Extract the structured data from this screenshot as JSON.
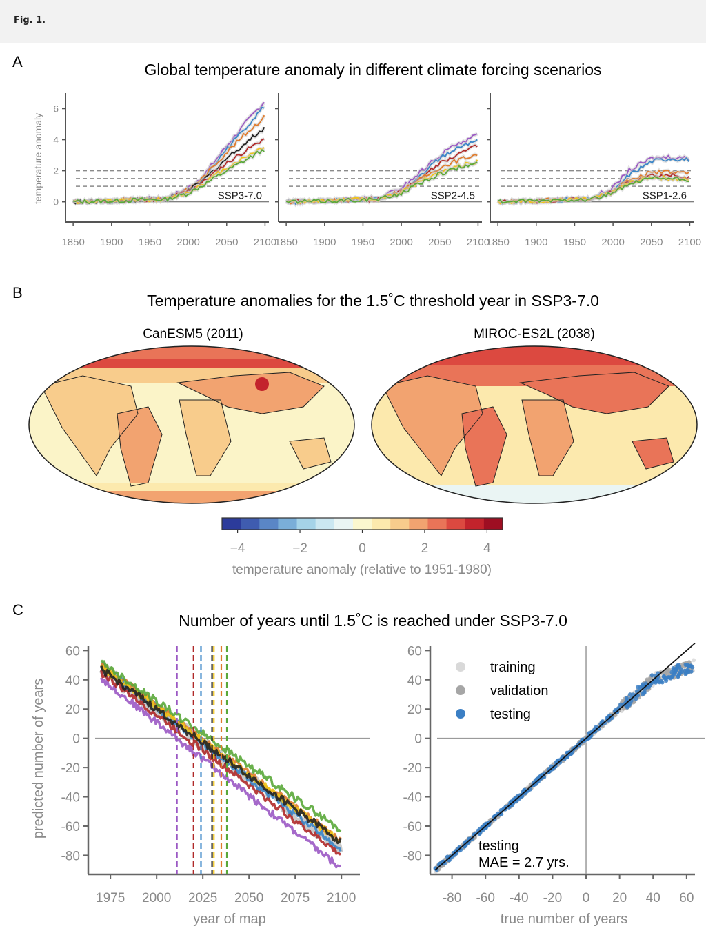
{
  "figure_label": "Fig. 1.",
  "panels": {
    "a": {
      "letter": "A",
      "title": "Global temperature anomaly in different climate forcing scenarios"
    },
    "b": {
      "letter": "B",
      "title": "Temperature anomalies for the 1.5˚C threshold year in SSP3-7.0",
      "map_titles": [
        "CanESM5 (2011)",
        "MIROC-ES2L (2038)"
      ],
      "colorbar": {
        "label": "temperature anomaly (relative to 1951-1980)",
        "range": [
          -4.5,
          4.5
        ],
        "ticks": [
          -4,
          -2,
          0,
          2,
          4
        ],
        "tick_labels": [
          "−4",
          "−2",
          "0",
          "2",
          "4"
        ],
        "colors": [
          "#2c3b9b",
          "#3f5cb0",
          "#5a86c6",
          "#7aaed8",
          "#a5d3e8",
          "#cbe7f1",
          "#eaf5f4",
          "#fbf7cf",
          "#fce9ad",
          "#f8cc8c",
          "#f2a370",
          "#e97458",
          "#dc4940",
          "#c3232c",
          "#9e0e22"
        ]
      }
    },
    "c": {
      "letter": "C",
      "title": "Number of years until 1.5˚C is reached under SSP3-7.0",
      "legend": [
        "training",
        "validation",
        "testing"
      ],
      "annotation": [
        "testing",
        "MAE = 2.7 yrs."
      ]
    }
  },
  "chart_data": [
    {
      "type": "line",
      "panel": "A1",
      "label": "SSP3-7.0",
      "ylabel": "temperature anomaly",
      "xlim": [
        1840,
        2105
      ],
      "ylim": [
        -1.3,
        7
      ],
      "x_ticks": [
        1850,
        1900,
        1950,
        2000,
        2050,
        2100
      ],
      "y_ticks": [
        0,
        2,
        4,
        6
      ],
      "hlines": [
        1,
        1.5,
        2
      ],
      "x": [
        1850,
        1900,
        1950,
        1970,
        2000,
        2020,
        2050,
        2075,
        2100
      ],
      "series": [
        {
          "color": "#9b59c4",
          "values": [
            0,
            0.05,
            0.2,
            0.2,
            0.9,
            1.7,
            3.6,
            5.1,
            6.5
          ]
        },
        {
          "color": "#3b86c8",
          "values": [
            0,
            0.05,
            0.15,
            0.15,
            0.6,
            1.5,
            3.4,
            4.8,
            6.2
          ]
        },
        {
          "color": "#e07b2b",
          "values": [
            0,
            0.05,
            0.2,
            0.15,
            0.8,
            1.6,
            3.2,
            4.4,
            5.5
          ]
        },
        {
          "color": "#222222",
          "values": [
            0,
            0.05,
            0.15,
            0.15,
            0.7,
            1.4,
            2.8,
            3.8,
            4.8
          ]
        },
        {
          "color": "#b02a2a",
          "values": [
            0,
            0.05,
            0.15,
            0.15,
            0.7,
            1.3,
            2.5,
            3.3,
            4.1
          ]
        },
        {
          "color": "#f0c419",
          "values": [
            0,
            0.05,
            0.15,
            0.15,
            0.6,
            1.2,
            2.2,
            2.9,
            3.6
          ]
        },
        {
          "color": "#5aa83a",
          "values": [
            0,
            0.05,
            0.15,
            0.15,
            0.55,
            1.1,
            2.0,
            2.7,
            3.4
          ]
        }
      ]
    },
    {
      "type": "line",
      "panel": "A2",
      "label": "SSP2-4.5",
      "xlim": [
        1840,
        2105
      ],
      "ylim": [
        -1.3,
        7
      ],
      "x_ticks": [
        1850,
        1900,
        1950,
        2000,
        2050,
        2100
      ],
      "hlines": [
        1,
        1.5,
        2
      ],
      "x": [
        1850,
        1900,
        1950,
        1970,
        2000,
        2020,
        2050,
        2075,
        2100
      ],
      "series": [
        {
          "color": "#9b59c4",
          "values": [
            0,
            0.05,
            0.2,
            0.2,
            0.9,
            1.7,
            3.0,
            3.8,
            4.3
          ]
        },
        {
          "color": "#3b86c8",
          "values": [
            0,
            0.05,
            0.15,
            0.15,
            0.6,
            1.5,
            2.8,
            3.5,
            4.0
          ]
        },
        {
          "color": "#b02a2a",
          "values": [
            0,
            0.05,
            0.15,
            0.15,
            0.7,
            1.4,
            2.5,
            3.1,
            3.6
          ]
        },
        {
          "color": "#e07b2b",
          "values": [
            0,
            0.05,
            0.2,
            0.15,
            0.7,
            1.3,
            2.2,
            2.7,
            3.1
          ]
        },
        {
          "color": "#f0c419",
          "values": [
            0,
            0.05,
            0.15,
            0.15,
            0.6,
            1.2,
            1.9,
            2.3,
            2.6
          ]
        },
        {
          "color": "#5aa83a",
          "values": [
            0,
            0.05,
            0.15,
            0.15,
            0.55,
            1.1,
            1.8,
            2.2,
            2.5
          ]
        }
      ]
    },
    {
      "type": "line",
      "panel": "A3",
      "label": "SSP1-2.6",
      "xlim": [
        1840,
        2105
      ],
      "ylim": [
        -1.3,
        7
      ],
      "x_ticks": [
        1850,
        1900,
        1950,
        2000,
        2050,
        2100
      ],
      "hlines": [
        1,
        1.5,
        2
      ],
      "x": [
        1850,
        1900,
        1950,
        1970,
        2000,
        2020,
        2050,
        2075,
        2100
      ],
      "series": [
        {
          "color": "#9b59c4",
          "values": [
            0,
            0.05,
            0.2,
            0.2,
            0.9,
            2.0,
            2.8,
            2.9,
            2.8
          ]
        },
        {
          "color": "#3b86c8",
          "values": [
            0,
            0.05,
            0.15,
            0.15,
            0.6,
            1.7,
            2.6,
            2.8,
            2.7
          ]
        },
        {
          "color": "#e07b2b",
          "values": [
            0,
            0.05,
            0.2,
            0.15,
            0.7,
            1.4,
            1.9,
            1.9,
            1.8
          ]
        },
        {
          "color": "#b02a2a",
          "values": [
            0,
            0.05,
            0.15,
            0.15,
            0.65,
            1.3,
            1.7,
            1.7,
            1.6
          ]
        },
        {
          "color": "#f0c419",
          "values": [
            0,
            0.05,
            0.15,
            0.15,
            0.6,
            1.2,
            1.6,
            1.5,
            1.4
          ]
        },
        {
          "color": "#5aa83a",
          "values": [
            0,
            0.05,
            0.15,
            0.15,
            0.55,
            1.1,
            1.5,
            1.5,
            1.4
          ]
        }
      ]
    },
    {
      "type": "scatter",
      "panel": "C1",
      "xlabel": "year of map",
      "ylabel": "predicted number of years",
      "xlim": [
        1963,
        2110
      ],
      "ylim": [
        -93,
        63
      ],
      "x_ticks": [
        1975,
        2000,
        2025,
        2050,
        2075,
        2100
      ],
      "y_ticks": [
        60,
        40,
        20,
        0,
        -20,
        -40,
        -60,
        -80
      ],
      "vlines": [
        {
          "x": 2011,
          "color": "#9b59c4"
        },
        {
          "x": 2020,
          "color": "#b02a2a"
        },
        {
          "x": 2024,
          "color": "#3b86c8"
        },
        {
          "x": 2030,
          "color": "#222222"
        },
        {
          "x": 2031,
          "color": "#f0c419"
        },
        {
          "x": 2035,
          "color": "#e07b2b"
        },
        {
          "x": 2038,
          "color": "#5aa83a"
        }
      ],
      "series": [
        {
          "color": "#bdbdbd",
          "x": [
            1970,
            2100
          ],
          "y": [
            48,
            -75
          ]
        },
        {
          "color": "#9b59c4",
          "x": [
            1970,
            2100
          ],
          "y": [
            41,
            -89
          ]
        },
        {
          "color": "#b02a2a",
          "x": [
            1970,
            2100
          ],
          "y": [
            45,
            -80
          ]
        },
        {
          "color": "#3b86c8",
          "x": [
            1970,
            2100
          ],
          "y": [
            50,
            -76
          ]
        },
        {
          "color": "#e07b2b",
          "x": [
            1970,
            2100
          ],
          "y": [
            50,
            -70
          ]
        },
        {
          "color": "#f0c419",
          "x": [
            1970,
            2100
          ],
          "y": [
            49,
            -71
          ]
        },
        {
          "color": "#5aa83a",
          "x": [
            1970,
            2100
          ],
          "y": [
            52,
            -63
          ]
        },
        {
          "color": "#222222",
          "x": [
            1970,
            2100
          ],
          "y": [
            47,
            -71
          ]
        }
      ]
    },
    {
      "type": "scatter",
      "panel": "C2",
      "xlabel": "true number of years",
      "xlim": [
        -93,
        65
      ],
      "ylim": [
        -93,
        63
      ],
      "x_ticks": [
        -80,
        -60,
        -40,
        -20,
        0,
        20,
        40,
        60
      ],
      "y_ticks": [
        60,
        40,
        20,
        0,
        -20,
        -40,
        -60,
        -80
      ],
      "series": [
        {
          "name": "training",
          "color": "#d9d9d9",
          "x": [
            -90,
            65
          ],
          "y": [
            -90,
            50
          ]
        },
        {
          "name": "validation",
          "color": "#a6a6a6",
          "x": [
            -90,
            65
          ],
          "y": [
            -90,
            50
          ]
        },
        {
          "name": "testing",
          "color": "#3b7fc4",
          "x": [
            -90,
            65
          ],
          "y": [
            -90,
            50
          ]
        }
      ]
    }
  ]
}
